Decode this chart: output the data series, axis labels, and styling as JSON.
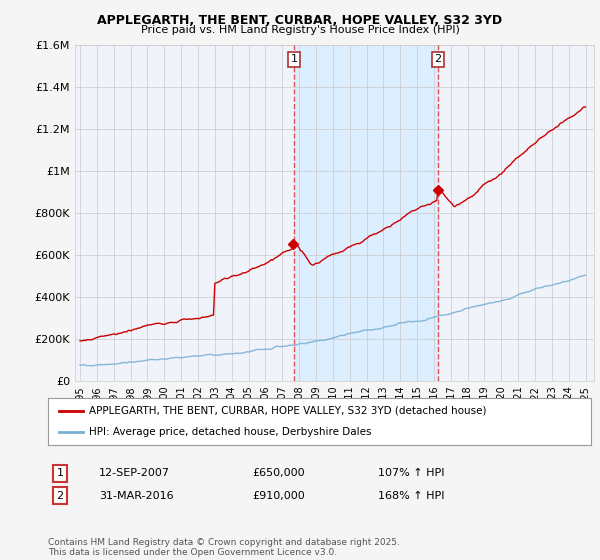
{
  "title": "APPLEGARTH, THE BENT, CURBAR, HOPE VALLEY, S32 3YD",
  "subtitle": "Price paid vs. HM Land Registry's House Price Index (HPI)",
  "legend_line1": "APPLEGARTH, THE BENT, CURBAR, HOPE VALLEY, S32 3YD (detached house)",
  "legend_line2": "HPI: Average price, detached house, Derbyshire Dales",
  "annotation1_date": "12-SEP-2007",
  "annotation1_price": "£650,000",
  "annotation1_hpi": "107% ↑ HPI",
  "annotation2_date": "31-MAR-2016",
  "annotation2_price": "£910,000",
  "annotation2_hpi": "168% ↑ HPI",
  "footer": "Contains HM Land Registry data © Crown copyright and database right 2025.\nThis data is licensed under the Open Government Licence v3.0.",
  "house_color": "#cc0000",
  "hpi_color": "#7ab0d4",
  "vline_color": "#dd4444",
  "shade_color": "#ddeeff",
  "ylim": [
    0,
    1600000
  ],
  "yticks": [
    0,
    200000,
    400000,
    600000,
    800000,
    1000000,
    1200000,
    1400000,
    1600000
  ],
  "background_color": "#f5f5f5",
  "plot_bg": "#f0f4fa",
  "grid_color": "#cccccc",
  "year_sale1": 2007.7,
  "year_sale2": 2016.25
}
